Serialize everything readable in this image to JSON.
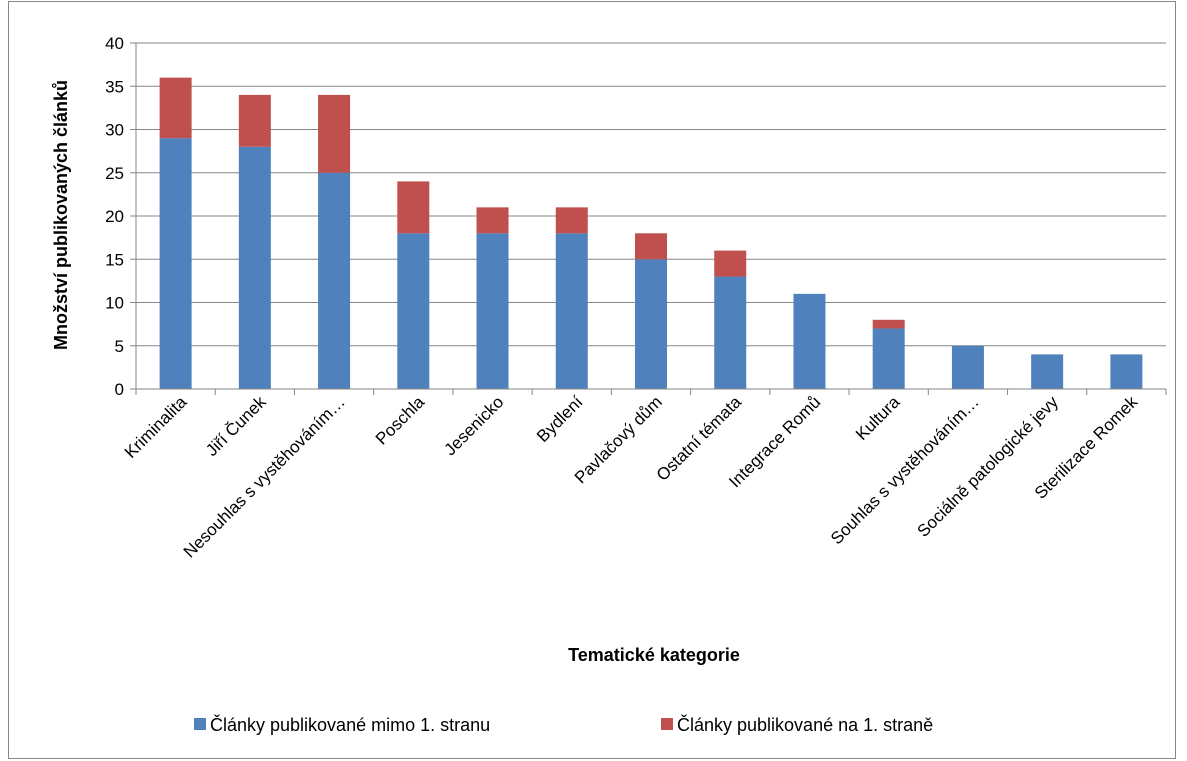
{
  "chart_data": {
    "type": "bar",
    "stacked": true,
    "title": "",
    "xlabel": "Tematické kategorie",
    "ylabel": "Množství publikovaných článků",
    "ylim": [
      0,
      40
    ],
    "yticks": [
      0,
      5,
      10,
      15,
      20,
      25,
      30,
      35,
      40
    ],
    "grid": true,
    "legend_position": "bottom",
    "categories": [
      "Kriminalita",
      "Jiří Čunek",
      "Nesouhlas s vystěhováním…",
      "Poschla",
      "Jesenicko",
      "Bydlení",
      "Pavlačový dům",
      "Ostatní témata",
      "Integrace Romů",
      "Kultura",
      "Souhlas s vystěhováním…",
      "Sociálně patologické jevy",
      "Sterilizace Romek"
    ],
    "series": [
      {
        "name": "Články publikované mimo 1. stranu",
        "color": "#4f81bd",
        "values": [
          29,
          28,
          25,
          18,
          18,
          18,
          15,
          13,
          11,
          7,
          5,
          4,
          4
        ]
      },
      {
        "name": "Články publikované na 1. straně",
        "color": "#c0504d",
        "values": [
          7,
          6,
          9,
          6,
          3,
          3,
          3,
          3,
          0,
          1,
          0,
          0,
          0
        ]
      }
    ]
  }
}
